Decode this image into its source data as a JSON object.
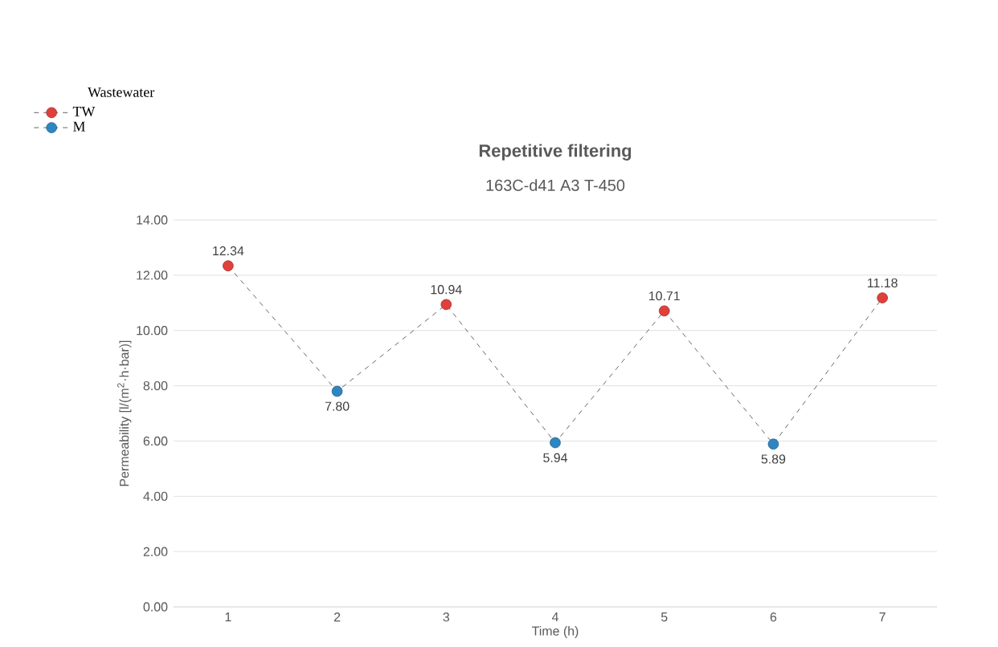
{
  "chart_data": {
    "type": "line",
    "title": "Repetitive filtering",
    "subtitle": "163C-d41 A3 T-450",
    "xlabel": "Time (h)",
    "ylabel": "Permeability [l/(m$^{2}$·h·bar)]",
    "legend_title": "Wastewater",
    "categories": [
      "1",
      "2",
      "3",
      "4",
      "5",
      "6",
      "7"
    ],
    "series": [
      {
        "type": "line",
        "color": "#404040",
        "line_style": "dashed",
        "marker": "none",
        "values": [
          12.34,
          7.8,
          10.94,
          5.94,
          10.71,
          5.89,
          11.18
        ]
      },
      {
        "type": "scatter",
        "name": "TW",
        "color": "#e0403a",
        "marker": "circle",
        "values": [
          12.34,
          null,
          10.94,
          null,
          10.71,
          null,
          11.18
        ],
        "value_labels": [
          "12.34",
          null,
          "10.94",
          null,
          "10.71",
          null,
          "11.18"
        ]
      },
      {
        "type": "scatter",
        "name": "M",
        "color": "#2e86c1",
        "marker": "circle",
        "values": [
          null,
          7.8,
          null,
          5.94,
          null,
          5.89,
          null
        ],
        "value_labels": [
          null,
          "7.80",
          null,
          "5.94",
          null,
          "5.89",
          null
        ]
      }
    ],
    "ylim": [
      0,
      14
    ],
    "yticks": [
      {
        "value": 0,
        "label": "0.00"
      },
      {
        "value": 2,
        "label": "2.00"
      },
      {
        "value": 4,
        "label": "4.00"
      },
      {
        "value": 6,
        "label": "6.00"
      },
      {
        "value": 8,
        "label": "8.00"
      },
      {
        "value": 10,
        "label": "10.00"
      },
      {
        "value": 12,
        "label": "12.00"
      },
      {
        "value": 14,
        "label": "14.00"
      }
    ],
    "grid": "y",
    "legend": "top left"
  }
}
